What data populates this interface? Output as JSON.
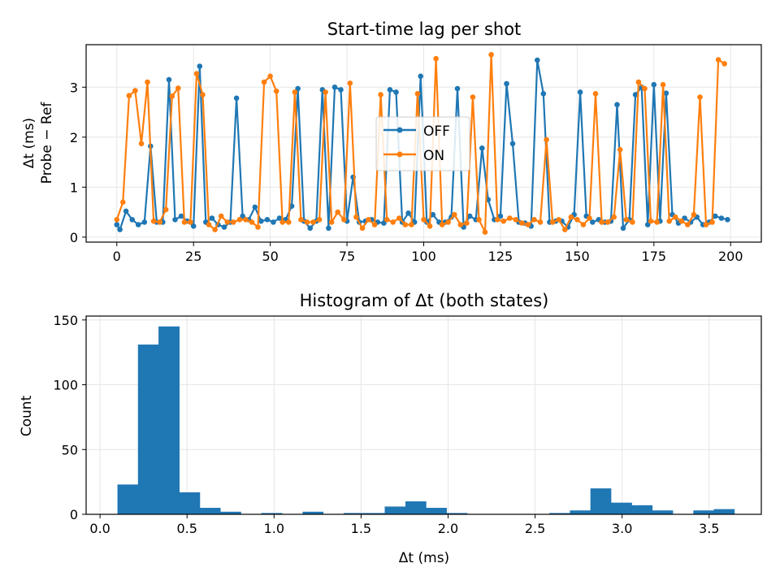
{
  "chart_data": [
    {
      "type": "line",
      "title": "Start-time lag per shot",
      "ylabel_lines": [
        "Δt  (ms)",
        "Probe − Ref"
      ],
      "xlabel": "",
      "xlim": [
        -10,
        210
      ],
      "ylim": [
        -0.1,
        3.85
      ],
      "xticks": [
        0,
        25,
        50,
        75,
        100,
        125,
        150,
        175,
        200
      ],
      "yticks": [
        0,
        1,
        2,
        3
      ],
      "grid": true,
      "legend_position": "center",
      "series": [
        {
          "name": "OFF",
          "color": "#1f77b4",
          "x": [
            0,
            1,
            3,
            5,
            7,
            9,
            11,
            13,
            15,
            17,
            19,
            21,
            23,
            25,
            27,
            29,
            31,
            33,
            35,
            37,
            39,
            41,
            43,
            45,
            47,
            49,
            51,
            53,
            55,
            57,
            59,
            61,
            63,
            65,
            67,
            69,
            71,
            73,
            75,
            77,
            79,
            81,
            83,
            85,
            87,
            89,
            91,
            93,
            95,
            97,
            99,
            101,
            103,
            105,
            107,
            109,
            111,
            113,
            115,
            117,
            119,
            121,
            123,
            125,
            127,
            129,
            131,
            133,
            135,
            137,
            139,
            141,
            143,
            145,
            147,
            149,
            151,
            153,
            155,
            157,
            159,
            161,
            163,
            165,
            167,
            169,
            171,
            173,
            175,
            177,
            179,
            181,
            183,
            185,
            187,
            189,
            191,
            193,
            195,
            197,
            199
          ],
          "y": [
            0.25,
            0.15,
            0.52,
            0.35,
            0.25,
            0.3,
            1.82,
            0.3,
            0.3,
            3.15,
            0.35,
            0.42,
            0.32,
            0.22,
            3.42,
            0.3,
            0.38,
            0.25,
            0.2,
            0.3,
            2.78,
            0.42,
            0.35,
            0.6,
            0.32,
            0.35,
            0.3,
            0.38,
            0.35,
            0.62,
            2.97,
            0.32,
            0.18,
            0.32,
            2.95,
            0.18,
            3.0,
            2.95,
            0.32,
            1.2,
            0.3,
            0.32,
            0.35,
            0.3,
            0.28,
            2.95,
            2.9,
            0.3,
            0.48,
            0.3,
            3.22,
            0.3,
            0.45,
            0.3,
            0.3,
            0.4,
            2.97,
            0.2,
            0.42,
            0.35,
            1.78,
            0.75,
            0.35,
            0.42,
            3.07,
            1.87,
            0.3,
            0.28,
            0.22,
            3.54,
            2.87,
            0.3,
            0.32,
            0.32,
            0.2,
            0.45,
            2.9,
            0.42,
            0.3,
            0.35,
            0.3,
            0.32,
            2.65,
            0.18,
            0.35,
            2.85,
            3.0,
            0.25,
            3.05,
            0.32,
            2.88,
            0.45,
            0.28,
            0.38,
            0.3,
            0.4,
            0.25,
            0.3,
            0.42,
            0.38,
            0.35
          ]
        },
        {
          "name": "ON",
          "color": "#ff7f0e",
          "x": [
            0,
            2,
            4,
            6,
            8,
            10,
            12,
            14,
            16,
            18,
            20,
            22,
            24,
            26,
            28,
            30,
            32,
            34,
            36,
            38,
            40,
            42,
            44,
            46,
            48,
            50,
            52,
            54,
            56,
            58,
            60,
            62,
            64,
            66,
            68,
            70,
            72,
            74,
            76,
            78,
            80,
            82,
            84,
            86,
            88,
            90,
            92,
            94,
            96,
            98,
            100,
            102,
            104,
            106,
            108,
            110,
            112,
            114,
            116,
            118,
            120,
            122,
            124,
            126,
            128,
            130,
            132,
            134,
            136,
            138,
            140,
            142,
            144,
            146,
            148,
            150,
            152,
            154,
            156,
            158,
            160,
            162,
            164,
            166,
            168,
            170,
            172,
            174,
            176,
            178,
            180,
            182,
            184,
            186,
            188,
            190,
            192,
            194,
            196,
            198
          ],
          "y": [
            0.35,
            0.7,
            2.83,
            2.93,
            1.87,
            3.1,
            0.32,
            0.3,
            0.55,
            2.82,
            2.98,
            0.3,
            0.3,
            3.27,
            2.85,
            0.25,
            0.15,
            0.42,
            0.3,
            0.3,
            0.35,
            0.35,
            0.3,
            0.2,
            3.1,
            3.22,
            2.92,
            0.3,
            0.3,
            2.9,
            0.35,
            0.3,
            0.3,
            0.35,
            2.9,
            0.3,
            0.5,
            0.35,
            3.08,
            0.4,
            0.18,
            0.35,
            0.25,
            2.85,
            0.35,
            0.3,
            0.38,
            0.25,
            0.25,
            2.87,
            0.35,
            0.22,
            3.57,
            0.25,
            0.3,
            0.45,
            0.25,
            0.28,
            2.8,
            0.35,
            0.1,
            3.65,
            0.35,
            0.32,
            0.38,
            0.35,
            0.28,
            0.25,
            0.35,
            0.3,
            1.95,
            0.3,
            0.35,
            0.15,
            0.4,
            0.35,
            0.25,
            0.38,
            2.87,
            0.3,
            0.3,
            0.4,
            1.75,
            0.35,
            0.3,
            3.1,
            2.97,
            0.32,
            0.3,
            3.05,
            0.32,
            0.4,
            0.32,
            0.25,
            0.45,
            2.8,
            0.25,
            0.3,
            3.55,
            3.47
          ]
        }
      ]
    },
    {
      "type": "bar",
      "title": "Histogram of Δt (both states)",
      "xlabel": "Δt  (ms)",
      "ylabel": "Count",
      "xlim": [
        -0.08,
        3.8
      ],
      "ylim": [
        0,
        153
      ],
      "xticks": [
        "0.0",
        "0.5",
        "1.0",
        "1.5",
        "2.0",
        "2.5",
        "3.0",
        "3.5"
      ],
      "yticks": [
        0,
        50,
        100,
        150
      ],
      "grid": true,
      "color": "#1f77b4",
      "bin_edges": [
        0.1,
        0.218,
        0.336,
        0.455,
        0.573,
        0.691,
        0.809,
        0.927,
        1.045,
        1.164,
        1.282,
        1.4,
        1.518,
        1.636,
        1.755,
        1.873,
        1.991,
        2.109,
        2.227,
        2.345,
        2.464,
        2.582,
        2.7,
        2.818,
        2.936,
        3.055,
        3.173,
        3.291,
        3.409,
        3.527,
        3.645
      ],
      "counts": [
        23,
        131,
        145,
        17,
        5,
        2,
        0,
        1,
        0,
        2,
        0,
        1,
        1,
        6,
        10,
        5,
        1,
        0,
        0,
        0,
        0,
        1,
        3,
        20,
        9,
        7,
        3,
        0,
        3,
        4
      ]
    }
  ]
}
